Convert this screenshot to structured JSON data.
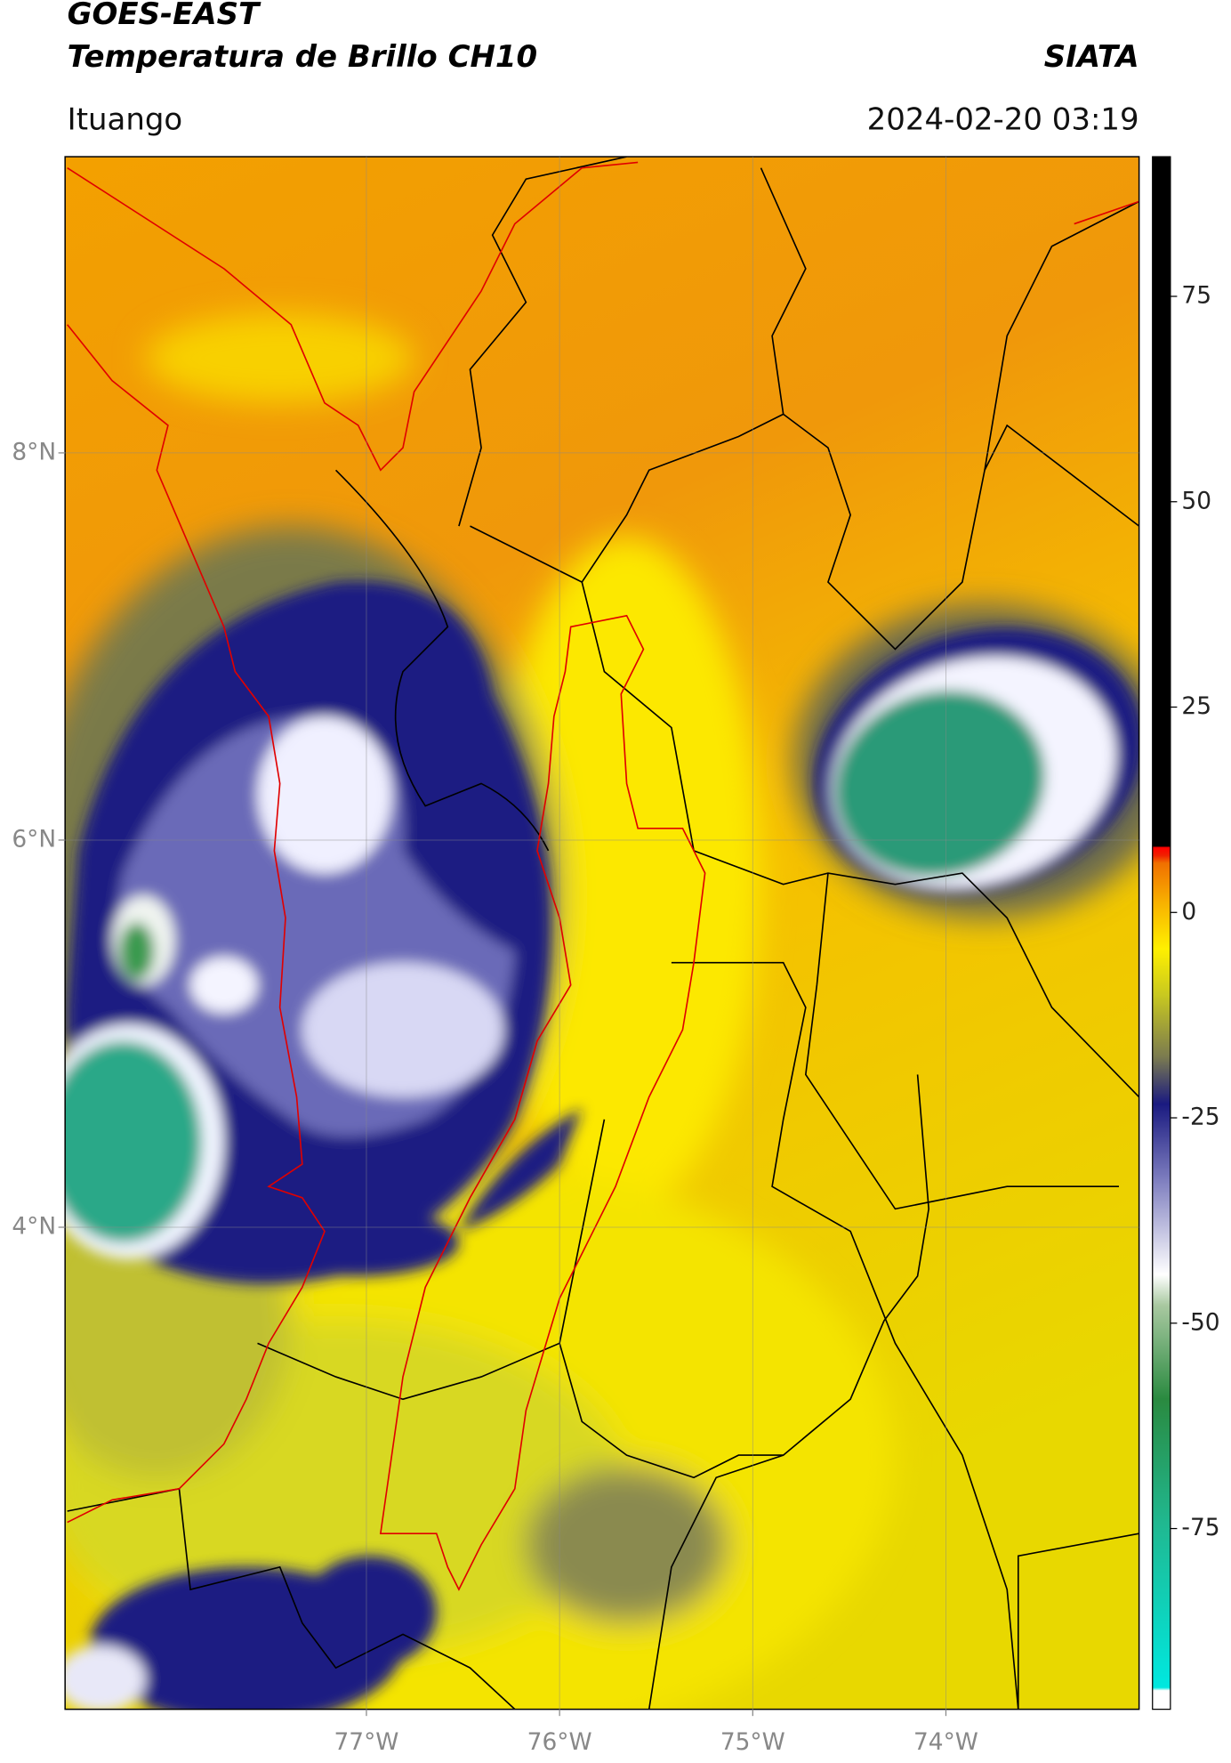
{
  "chart_data": {
    "type": "map",
    "title": "GOES-EAST",
    "subtitle": "Temperatura de Brillo CH10",
    "brand": "SIATA",
    "location": "Ituango",
    "timestamp": "2024-02-20 03:19",
    "xlim": [
      -78.56,
      -73.0
    ],
    "ylim": [
      1.51,
      9.53
    ],
    "xticks": [
      {
        "value": -77,
        "label": "77°W"
      },
      {
        "value": -76,
        "label": "76°W"
      },
      {
        "value": -75,
        "label": "75°W"
      },
      {
        "value": -74,
        "label": "74°W"
      }
    ],
    "yticks": [
      {
        "value": 8,
        "label": "8°N"
      },
      {
        "value": 6,
        "label": "6°N"
      },
      {
        "value": 4,
        "label": "4°N"
      }
    ],
    "grid": true,
    "colorbar": {
      "lim": [
        -97,
        92
      ],
      "ticks": [
        75,
        50,
        25,
        0,
        -25,
        -50,
        -75
      ]
    }
  }
}
